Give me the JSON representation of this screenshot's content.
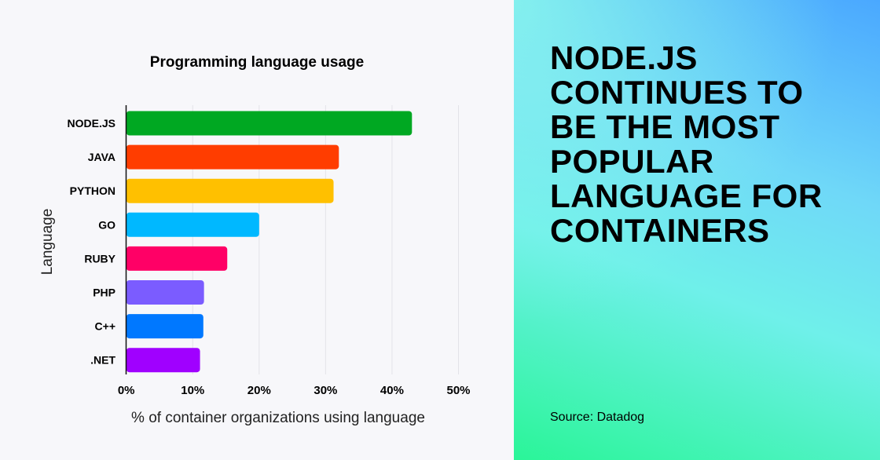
{
  "chart_data": {
    "type": "bar",
    "orientation": "horizontal",
    "title": "Programming language usage",
    "xlabel": "% of container organizations using language",
    "ylabel": "Language",
    "categories": [
      "NODE.JS",
      "JAVA",
      "PYTHON",
      "GO",
      "RUBY",
      "PHP",
      "C++",
      ".NET"
    ],
    "values": [
      43,
      32,
      31.2,
      20,
      15.2,
      11.7,
      11.6,
      11.1
    ],
    "colors": [
      "#00a822",
      "#ff3d00",
      "#ffc000",
      "#00b8ff",
      "#ff0066",
      "#7b5cff",
      "#0078ff",
      "#a000ff"
    ],
    "xlim": [
      0,
      50
    ],
    "xticks": [
      "0%",
      "10%",
      "20%",
      "30%",
      "40%",
      "50%"
    ],
    "grid": true,
    "legend": "none"
  },
  "panel": {
    "headline_lines": [
      "NODE.JS",
      "CONTINUES TO",
      "BE THE MOST",
      "POPULAR",
      "LANGUAGE FOR",
      "CONTAINERS"
    ],
    "source": "Source: Datadog"
  }
}
